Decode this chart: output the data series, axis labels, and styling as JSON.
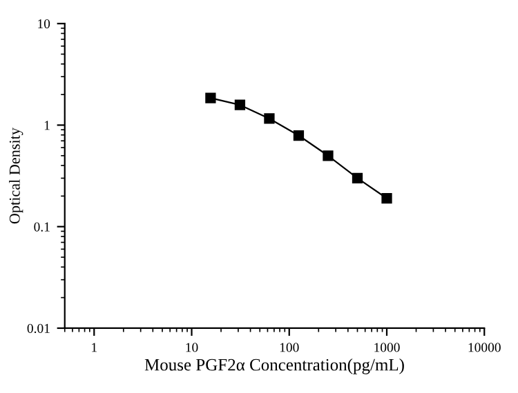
{
  "chart_data": {
    "type": "line",
    "xlabel": "Mouse PGF2α Concentration(pg/mL)",
    "ylabel": "Optical Density",
    "log": "xy",
    "x": [
      15.625,
      31.25,
      62.5,
      125,
      250,
      500,
      1000
    ],
    "series": [
      {
        "color": "#000000",
        "values": [
          1.85,
          1.58,
          1.16,
          0.79,
          0.5,
          0.3,
          0.19
        ]
      }
    ],
    "xlim": [
      0.5,
      10000
    ],
    "ylim": [
      0.01,
      10
    ],
    "xticks": [
      1,
      10,
      100,
      1000,
      10000
    ],
    "yticks": [
      0.01,
      0.1,
      1,
      10
    ],
    "marker": "square",
    "line_style": "solid",
    "grid": false,
    "legend": false
  }
}
